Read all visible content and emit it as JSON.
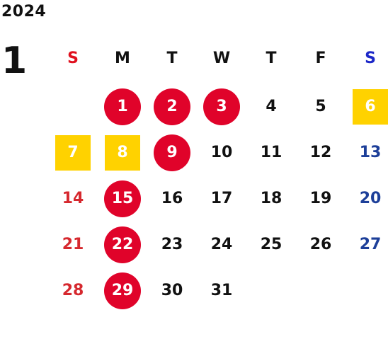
{
  "calendar": {
    "year": "2024",
    "month": "1",
    "weekdays": [
      {
        "label": "S",
        "color": "#e0101e"
      },
      {
        "label": "M",
        "color": "#111111"
      },
      {
        "label": "T",
        "color": "#111111"
      },
      {
        "label": "W",
        "color": "#111111"
      },
      {
        "label": "T",
        "color": "#111111"
      },
      {
        "label": "F",
        "color": "#111111"
      },
      {
        "label": "S",
        "color": "#1d28c8"
      }
    ],
    "colors": {
      "holiday_circle": "#e0032a",
      "highlight_box": "#ffd200",
      "sunday_text": "#d6282e",
      "saturday_text": "#1d3f99",
      "weekday_text": "#111111"
    },
    "days": [
      {
        "day": "1",
        "week": 0,
        "weekday": 1,
        "style": "circle"
      },
      {
        "day": "2",
        "week": 0,
        "weekday": 2,
        "style": "circle"
      },
      {
        "day": "3",
        "week": 0,
        "weekday": 3,
        "style": "circle"
      },
      {
        "day": "4",
        "week": 0,
        "weekday": 4,
        "style": "plain"
      },
      {
        "day": "5",
        "week": 0,
        "weekday": 5,
        "style": "plain"
      },
      {
        "day": "6",
        "week": 0,
        "weekday": 6,
        "style": "box"
      },
      {
        "day": "7",
        "week": 1,
        "weekday": 0,
        "style": "box"
      },
      {
        "day": "8",
        "week": 1,
        "weekday": 1,
        "style": "box"
      },
      {
        "day": "9",
        "week": 1,
        "weekday": 2,
        "style": "circle"
      },
      {
        "day": "10",
        "week": 1,
        "weekday": 3,
        "style": "plain"
      },
      {
        "day": "11",
        "week": 1,
        "weekday": 4,
        "style": "plain"
      },
      {
        "day": "12",
        "week": 1,
        "weekday": 5,
        "style": "plain"
      },
      {
        "day": "13",
        "week": 1,
        "weekday": 6,
        "style": "plain"
      },
      {
        "day": "14",
        "week": 2,
        "weekday": 0,
        "style": "plain"
      },
      {
        "day": "15",
        "week": 2,
        "weekday": 1,
        "style": "circle"
      },
      {
        "day": "16",
        "week": 2,
        "weekday": 2,
        "style": "plain"
      },
      {
        "day": "17",
        "week": 2,
        "weekday": 3,
        "style": "plain"
      },
      {
        "day": "18",
        "week": 2,
        "weekday": 4,
        "style": "plain"
      },
      {
        "day": "19",
        "week": 2,
        "weekday": 5,
        "style": "plain"
      },
      {
        "day": "20",
        "week": 2,
        "weekday": 6,
        "style": "plain"
      },
      {
        "day": "21",
        "week": 3,
        "weekday": 0,
        "style": "plain"
      },
      {
        "day": "22",
        "week": 3,
        "weekday": 1,
        "style": "circle"
      },
      {
        "day": "23",
        "week": 3,
        "weekday": 2,
        "style": "plain"
      },
      {
        "day": "24",
        "week": 3,
        "weekday": 3,
        "style": "plain"
      },
      {
        "day": "25",
        "week": 3,
        "weekday": 4,
        "style": "plain"
      },
      {
        "day": "26",
        "week": 3,
        "weekday": 5,
        "style": "plain"
      },
      {
        "day": "27",
        "week": 3,
        "weekday": 6,
        "style": "plain"
      },
      {
        "day": "28",
        "week": 4,
        "weekday": 0,
        "style": "plain"
      },
      {
        "day": "29",
        "week": 4,
        "weekday": 1,
        "style": "circle"
      },
      {
        "day": "30",
        "week": 4,
        "weekday": 2,
        "style": "plain"
      },
      {
        "day": "31",
        "week": 4,
        "weekday": 3,
        "style": "plain"
      }
    ]
  }
}
